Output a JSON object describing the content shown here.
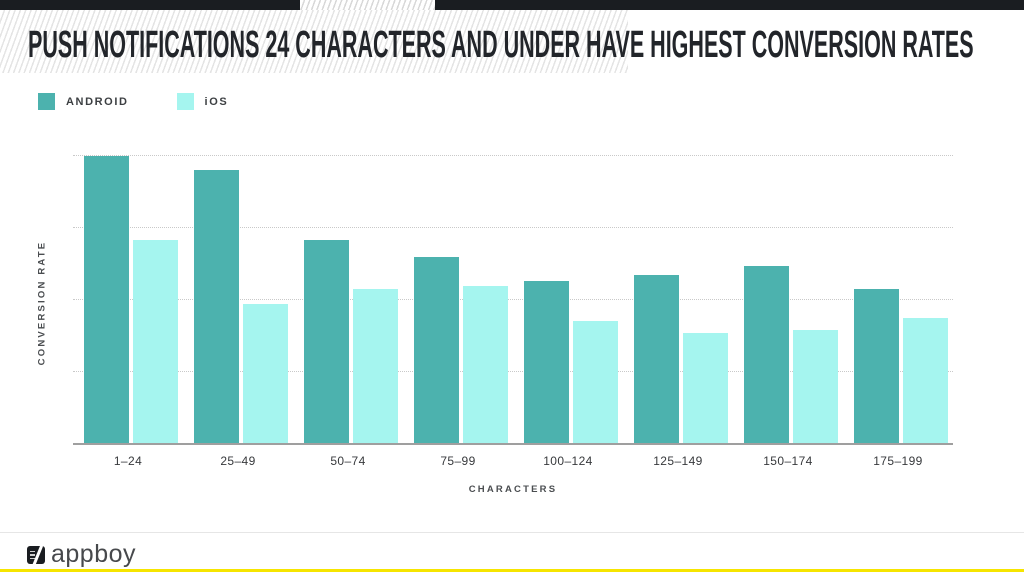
{
  "page": {
    "title": "PUSH NOTIFICATIONS 24 CHARACTERS AND UNDER HAVE HIGHEST CONVERSION RATES"
  },
  "legend": {
    "items": [
      {
        "label": "ANDROID",
        "color": "#4CB2AE"
      },
      {
        "label": "iOS",
        "color": "#A5F5EF"
      }
    ]
  },
  "chart_data": {
    "type": "bar",
    "title": "PUSH NOTIFICATIONS 24 CHARACTERS AND UNDER HAVE HIGHEST CONVERSION RATES",
    "categories": [
      "1–24",
      "25–49",
      "50–74",
      "75–99",
      "100–124",
      "125–149",
      "150–174",
      "175–199"
    ],
    "series": [
      {
        "name": "ANDROID",
        "color": "#4CB2AE",
        "values": [
          0.99,
          0.94,
          0.7,
          0.64,
          0.56,
          0.58,
          0.61,
          0.53
        ]
      },
      {
        "name": "iOS",
        "color": "#A5F5EF",
        "values": [
          0.7,
          0.48,
          0.53,
          0.54,
          0.42,
          0.38,
          0.39,
          0.43
        ]
      }
    ],
    "xlabel": "CHARACTERS",
    "ylabel": "CONVERSION RATE",
    "ylim": [
      0,
      1
    ],
    "yticklabels": [],
    "grid": true,
    "gridline_count": 4,
    "legend_position": "top-left"
  },
  "footer": {
    "brand": "appboy",
    "accent_color": "#F6E500"
  },
  "colors": {
    "top_bar": "#1A1D21",
    "android": "#4CB2AE",
    "ios": "#A5F5EF",
    "accent_yellow": "#F6E500"
  }
}
